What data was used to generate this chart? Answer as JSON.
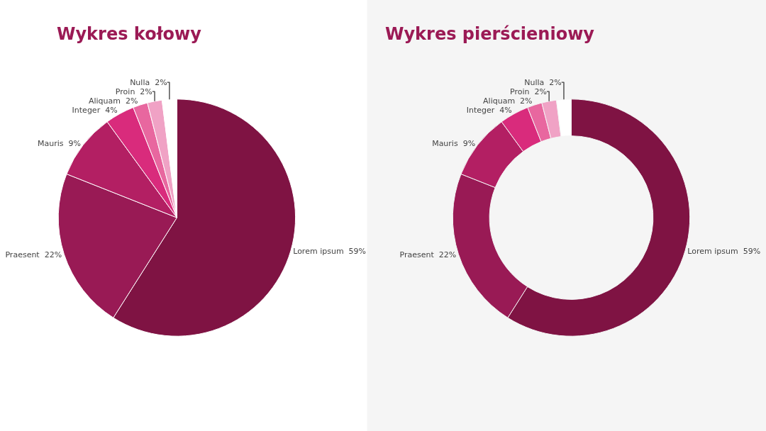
{
  "chart_data": [
    {
      "type": "pie",
      "title": "Wykres kołowy",
      "categories": [
        "Lorem ipsum",
        "Praesent",
        "Mauris",
        "Integer",
        "Aliquam",
        "Proin",
        "Nulla"
      ],
      "values": [
        59,
        22,
        9,
        4,
        2,
        2,
        2
      ],
      "value_labels": [
        "59%",
        "22%",
        "9%",
        "4%",
        "2%",
        "2%",
        "2%"
      ],
      "colors": [
        "#7f1343",
        "#991a55",
        "#b31f63",
        "#d92b7c",
        "#e8679f",
        "#f0a2c5",
        "#ffffff"
      ]
    },
    {
      "type": "donut",
      "title": "Wykres pierścieniowy",
      "categories": [
        "Lorem ipsum",
        "Praesent",
        "Mauris",
        "Integer",
        "Aliquam",
        "Proin",
        "Nulla"
      ],
      "values": [
        59,
        22,
        9,
        4,
        2,
        2,
        2
      ],
      "value_labels": [
        "59%",
        "22%",
        "9%",
        "4%",
        "2%",
        "2%",
        "2%"
      ],
      "colors": [
        "#7f1343",
        "#991a55",
        "#b31f63",
        "#d92b7c",
        "#e8679f",
        "#f0a2c5",
        "#ffffff"
      ]
    }
  ]
}
